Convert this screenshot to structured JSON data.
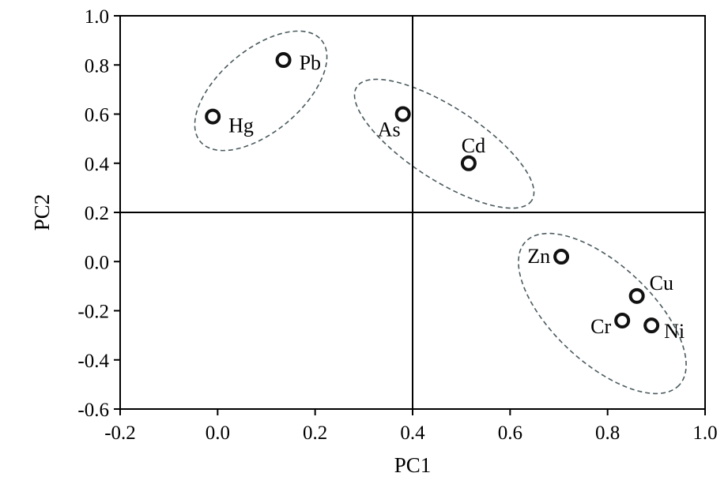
{
  "chart_data": {
    "type": "scatter",
    "title": "",
    "xlabel": "PC1",
    "ylabel": "PC2",
    "xlim": [
      -0.2,
      1.0
    ],
    "ylim": [
      -0.6,
      1.0
    ],
    "x_ticks": [
      "-0.2",
      "0.0",
      "0.2",
      "0.4",
      "0.6",
      "0.8",
      "1.0"
    ],
    "y_ticks": [
      "-0.6",
      "-0.4",
      "-0.2",
      "0.0",
      "0.2",
      "0.4",
      "0.6",
      "0.8",
      "1.0"
    ],
    "reference_lines": {
      "x": 0.4,
      "y": 0.2
    },
    "grid": false,
    "legend": "none",
    "points": [
      {
        "label": "Hg",
        "x": -0.01,
        "y": 0.59
      },
      {
        "label": "Pb",
        "x": 0.135,
        "y": 0.82
      },
      {
        "label": "As",
        "x": 0.38,
        "y": 0.6
      },
      {
        "label": "Cd",
        "x": 0.515,
        "y": 0.4
      },
      {
        "label": "Zn",
        "x": 0.705,
        "y": 0.02
      },
      {
        "label": "Cu",
        "x": 0.86,
        "y": -0.14
      },
      {
        "label": "Cr",
        "x": 0.83,
        "y": -0.24
      },
      {
        "label": "Ni",
        "x": 0.89,
        "y": -0.26
      }
    ],
    "groups": [
      {
        "members": [
          "Hg",
          "Pb"
        ],
        "style": "dashed-ellipse"
      },
      {
        "members": [
          "As",
          "Cd"
        ],
        "style": "dashed-ellipse"
      },
      {
        "members": [
          "Zn",
          "Cu",
          "Cr",
          "Ni"
        ],
        "style": "dashed-ellipse"
      }
    ],
    "colors": {
      "marker_stroke": "#111111",
      "ellipse_stroke": "#4a5a5e"
    }
  }
}
